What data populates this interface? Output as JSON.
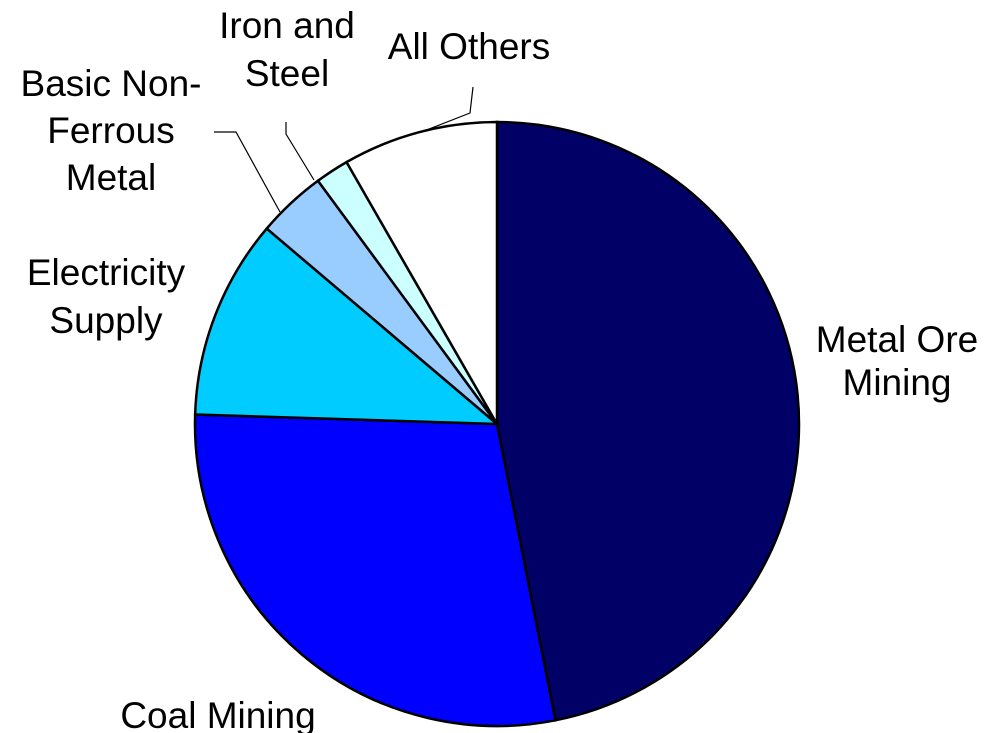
{
  "chart_data": {
    "type": "pie",
    "title": "",
    "start": "12 o'clock",
    "direction": "clockwise",
    "slices": [
      {
        "label": "Metal Ore Mining",
        "lines": [
          "Metal Ore",
          "Mining"
        ],
        "value": 46.9,
        "color": "#000066"
      },
      {
        "label": "Coal Mining",
        "lines": [
          "Coal Mining"
        ],
        "value": 28.6,
        "color": "#0000ff"
      },
      {
        "label": "Electricity Supply",
        "lines": [
          "Electricity",
          "Supply"
        ],
        "value": 10.7,
        "color": "#00ccff"
      },
      {
        "label": "Basic Non-Ferrous Metal",
        "lines": [
          "Basic Non-",
          "Ferrous",
          "Metal"
        ],
        "value": 3.7,
        "color": "#99ccff"
      },
      {
        "label": "Iron and Steel",
        "lines": [
          "Iron and",
          "Steel"
        ],
        "value": 1.8,
        "color": "#ccffff"
      },
      {
        "label": "All Others",
        "lines": [
          "All Others"
        ],
        "value": 8.3,
        "color": "#ffffff"
      }
    ]
  }
}
